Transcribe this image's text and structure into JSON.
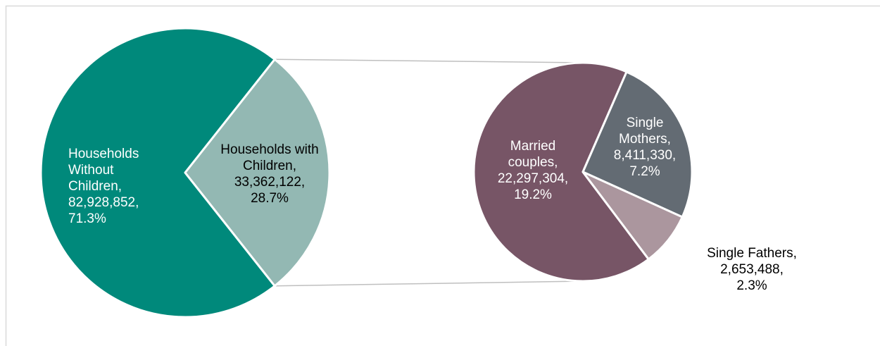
{
  "chart_data": {
    "type": "pie-of-pie",
    "separator": ",",
    "pies": [
      {
        "categories": [
          "Households Without Children",
          "Households with Children"
        ],
        "values": [
          82928852,
          33362122
        ],
        "value_labels": [
          "82,928,852",
          "33,362,122"
        ],
        "percents": [
          71.3,
          28.7
        ],
        "percent_labels": [
          "71.3%",
          "28.7%"
        ],
        "colors": [
          "#00897b",
          "#93b8b3"
        ]
      },
      {
        "categories": [
          "Married couples",
          "Single Mothers",
          "Single Fathers"
        ],
        "values": [
          22297304,
          8411330,
          2653488
        ],
        "value_labels": [
          "22,297,304",
          "8,411,330",
          "2,653,488"
        ],
        "percents": [
          19.2,
          7.2,
          2.3
        ],
        "percent_labels": [
          "19.2%",
          "7.2%",
          "2.3%"
        ],
        "colors": [
          "#775566",
          "#636b73",
          "#ab969e"
        ]
      }
    ]
  }
}
